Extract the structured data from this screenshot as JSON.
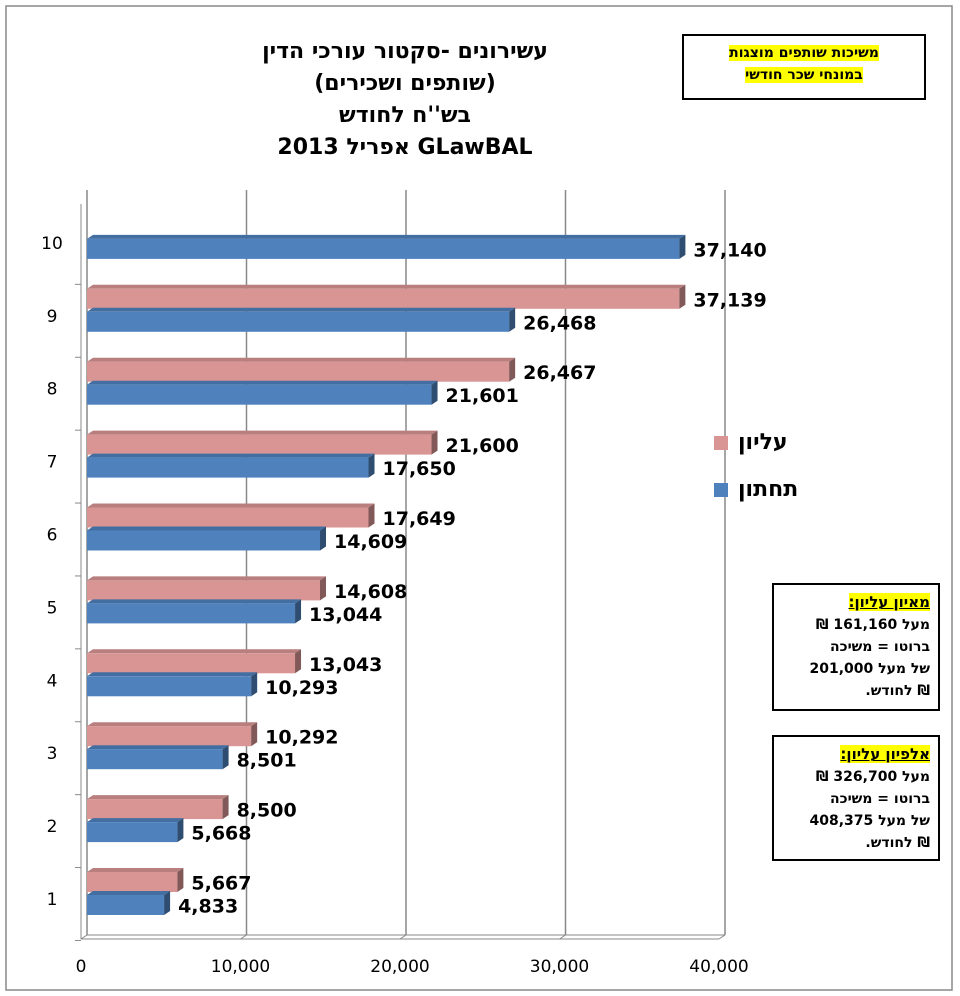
{
  "chart_data": {
    "type": "bar",
    "orientation": "horizontal",
    "title": [
      "עשירונים -סקטור עורכי הדין",
      "(שותפים ושכירים)",
      "בש''ח לחודש",
      "GLawBAL אפריל 2013"
    ],
    "categories": [
      "1",
      "2",
      "3",
      "4",
      "5",
      "6",
      "7",
      "8",
      "9",
      "10"
    ],
    "series": [
      {
        "name": "עליון",
        "color": "#d99594",
        "values": [
          5667,
          8500,
          10292,
          13043,
          14608,
          17649,
          21600,
          26467,
          37139,
          null
        ],
        "value_labels": [
          "5,667",
          "8,500",
          "10,292",
          "13,043",
          "14,608",
          "17,649",
          "21,600",
          "26,467",
          "37,139",
          null
        ]
      },
      {
        "name": "תחתון",
        "color": "#4f81bd",
        "values": [
          4833,
          5668,
          8501,
          10293,
          13044,
          14609,
          17650,
          21601,
          26468,
          37140
        ],
        "value_labels": [
          "4,833",
          "5,668",
          "8,501",
          "10,293",
          "13,044",
          "14,609",
          "17,650",
          "21,601",
          "26,468",
          "37,140"
        ]
      }
    ],
    "xlim": [
      0,
      40000
    ],
    "xticks": [
      0,
      {
        "value": 10000,
        "label": "10,000"
      },
      {
        "value": 20000,
        "label": "20,000"
      },
      {
        "value": 30000,
        "label": "30,000"
      },
      {
        "value": 40000,
        "label": "40,000"
      }
    ],
    "grid": true,
    "legend": "right",
    "annotations": [
      {
        "lines": [
          "משיכות שותפים מוצגות",
          "במונחי שכר חודשי"
        ]
      },
      {
        "heading": "מאיון עליון:",
        "lines": [
          "מעל 161,160 ₪",
          "ברוטו = משיכה",
          "של מעל 201,000",
          "₪ לחודש."
        ]
      },
      {
        "heading": "אלפיון עליון:",
        "lines": [
          "מעל 326,700 ₪",
          "ברוטו = משיכה",
          "של מעל 408,375",
          "₪ לחודש."
        ]
      }
    ]
  }
}
